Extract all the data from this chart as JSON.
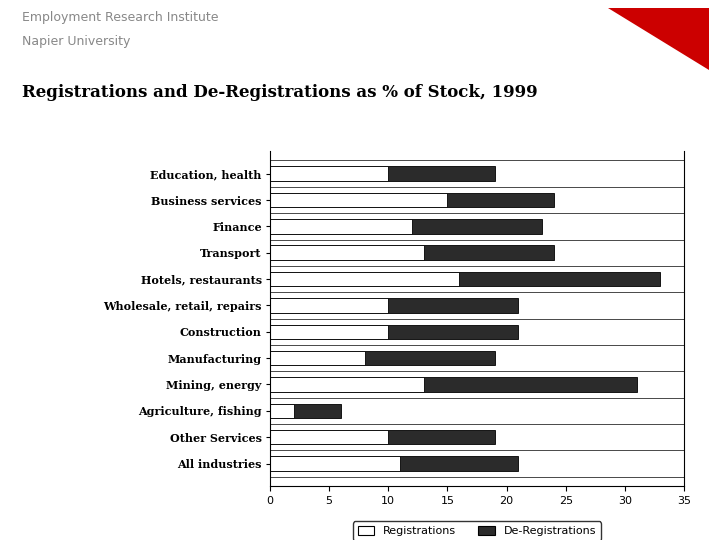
{
  "title": "Registrations and De-Registrations as % of Stock, 1999",
  "header_line1": "Employment Research Institute",
  "header_line2": "Napier University",
  "categories": [
    "Education, health",
    "Business services",
    "Finance",
    "Transport",
    "Hotels, restaurants",
    "Wholesale, retail, repairs",
    "Construction",
    "Manufacturing",
    "Mining, energy",
    "Agriculture, fishing",
    "Other Services",
    "All industries"
  ],
  "registrations": [
    10,
    15,
    12,
    13,
    16,
    10,
    10,
    8,
    13,
    2,
    10,
    11
  ],
  "deregistrations": [
    19,
    24,
    23,
    24,
    33,
    21,
    21,
    19,
    31,
    6,
    19,
    21
  ],
  "reg_color": "#ffffff",
  "dereg_color": "#2b2b2b",
  "bar_edge_color": "#000000",
  "xlim": [
    0,
    35
  ],
  "xticks": [
    0,
    5,
    10,
    15,
    20,
    25,
    30,
    35
  ],
  "background_color": "#ffffff",
  "title_fontsize": 12,
  "header_fontsize": 9,
  "tick_fontsize": 8,
  "legend_fontsize": 8,
  "triangle_color": "#cc0000"
}
